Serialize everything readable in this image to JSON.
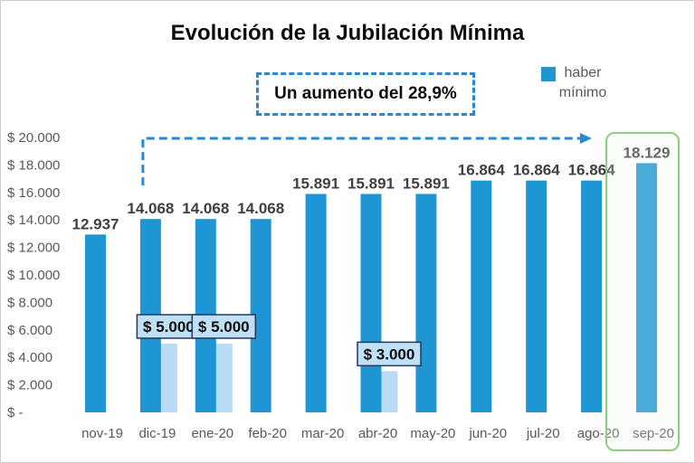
{
  "chart_data": {
    "type": "bar",
    "title": "Evolución de la Jubilación Mínima",
    "xlabel": "",
    "ylabel": "",
    "categories": [
      "nov-19",
      "dic-19",
      "ene-20",
      "feb-20",
      "mar-20",
      "abr-20",
      "may-20",
      "jun-20",
      "jul-20",
      "ago-20",
      "sep-20"
    ],
    "series": [
      {
        "name": "haber mínimo",
        "values": [
          12937,
          14068,
          14068,
          14068,
          15891,
          15891,
          15891,
          16864,
          16864,
          16864,
          18129
        ],
        "labels": [
          "12.937",
          "14.068",
          "14.068",
          "14.068",
          "15.891",
          "15.891",
          "15.891",
          "16.864",
          "16.864",
          "16.864",
          "18.129"
        ],
        "color": "#1e96d4"
      },
      {
        "values": [
          null,
          5000,
          5000,
          null,
          null,
          3000,
          null,
          null,
          null,
          null,
          null
        ],
        "labels": [
          null,
          "$ 5.000",
          "$ 5.000",
          null,
          null,
          "$ 3.000",
          null,
          null,
          null,
          null,
          null
        ],
        "color": "#b9dcf4"
      }
    ],
    "ylim": [
      0,
      20000
    ],
    "y_ticks": [
      0,
      2000,
      4000,
      6000,
      8000,
      10000,
      12000,
      14000,
      16000,
      18000,
      20000
    ],
    "y_tick_labels": [
      "$ -",
      "$ 2.000",
      "$ 4.000",
      "$ 6.000",
      "$ 8.000",
      "$ 10.000",
      "$ 12.000",
      "$ 14.000",
      "$ 16.000",
      "$ 18.000",
      "$ 20.000"
    ],
    "grid": false,
    "legend": {
      "position": "top-right"
    },
    "annotations": {
      "callout_text": "Un aumento del 28,9%",
      "arrow_from_index": 1,
      "arrow_to_index": 10,
      "highlight_index": 10
    }
  },
  "colors": {
    "value_label": "#404040",
    "axis_label": "#595959",
    "bonus_box_fill": "#bfe0f5",
    "bonus_box_border": "#1f3864",
    "annotation": "#2b88cc",
    "highlight": "#8ccf7e",
    "highlight_fill": "#eaf7e6"
  }
}
